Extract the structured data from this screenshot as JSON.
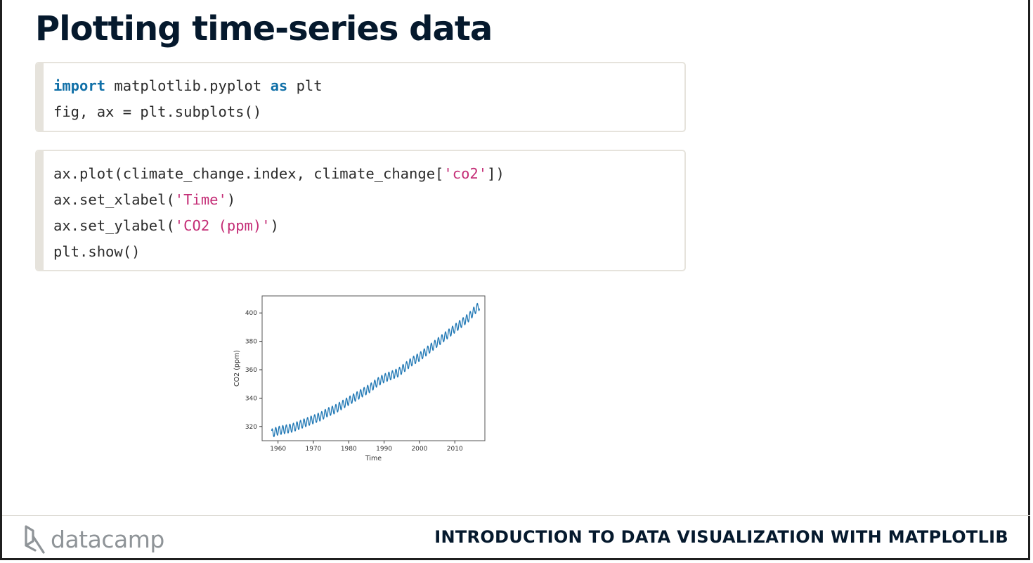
{
  "slide": {
    "title": "Plotting time-series data",
    "footer_course": "INTRODUCTION TO DATA VISUALIZATION WITH MATPLOTLIB",
    "logo_text": "datacamp"
  },
  "code_block_1": {
    "lines": [
      [
        {
          "t": "import",
          "c": "kw"
        },
        {
          "t": " matplotlib.pyplot ",
          "c": ""
        },
        {
          "t": "as",
          "c": "kw"
        },
        {
          "t": " plt",
          "c": ""
        }
      ],
      [
        {
          "t": "fig, ax = plt.subplots()",
          "c": ""
        }
      ]
    ]
  },
  "code_block_2": {
    "lines": [
      [
        {
          "t": "ax.plot(climate_change.index, climate_change[",
          "c": ""
        },
        {
          "t": "'co2'",
          "c": "str"
        },
        {
          "t": "])",
          "c": ""
        }
      ],
      [
        {
          "t": "ax.set_xlabel(",
          "c": ""
        },
        {
          "t": "'Time'",
          "c": "str"
        },
        {
          "t": ")",
          "c": ""
        }
      ],
      [
        {
          "t": "ax.set_ylabel(",
          "c": ""
        },
        {
          "t": "'CO2 (ppm)'",
          "c": "str"
        },
        {
          "t": ")",
          "c": ""
        }
      ],
      [
        {
          "t": "plt.show()",
          "c": ""
        }
      ]
    ]
  },
  "colors": {
    "title": "#05192d",
    "keyword": "#1170a8",
    "string": "#c42d76",
    "code_border": "#e6e3dc",
    "series_line": "#1f77b4"
  },
  "chart_data": {
    "type": "line",
    "xlabel": "Time",
    "ylabel": "CO2 (ppm)",
    "xlim": [
      1955.5,
      2018.5
    ],
    "ylim": [
      310,
      412
    ],
    "xticks": [
      1960,
      1970,
      1980,
      1990,
      2000,
      2010
    ],
    "yticks": [
      320,
      340,
      360,
      380,
      400
    ],
    "grid": false,
    "series": [
      {
        "x": [
          1958,
          1960,
          1962,
          1964,
          1966,
          1968,
          1970,
          1972,
          1974,
          1976,
          1978,
          1980,
          1982,
          1984,
          1986,
          1988,
          1990,
          1992,
          1994,
          1996,
          1998,
          2000,
          2002,
          2004,
          2006,
          2008,
          2010,
          2012,
          2014,
          2016,
          2017
        ],
        "y": [
          315,
          317,
          318,
          319,
          321,
          323,
          325,
          327,
          330,
          332,
          335,
          338,
          341,
          344,
          347,
          351,
          354,
          356,
          358,
          362,
          366,
          369,
          373,
          377,
          381,
          385,
          389,
          393,
          397,
          403,
          405
        ],
        "seasonal_amplitude": 3
      }
    ]
  }
}
